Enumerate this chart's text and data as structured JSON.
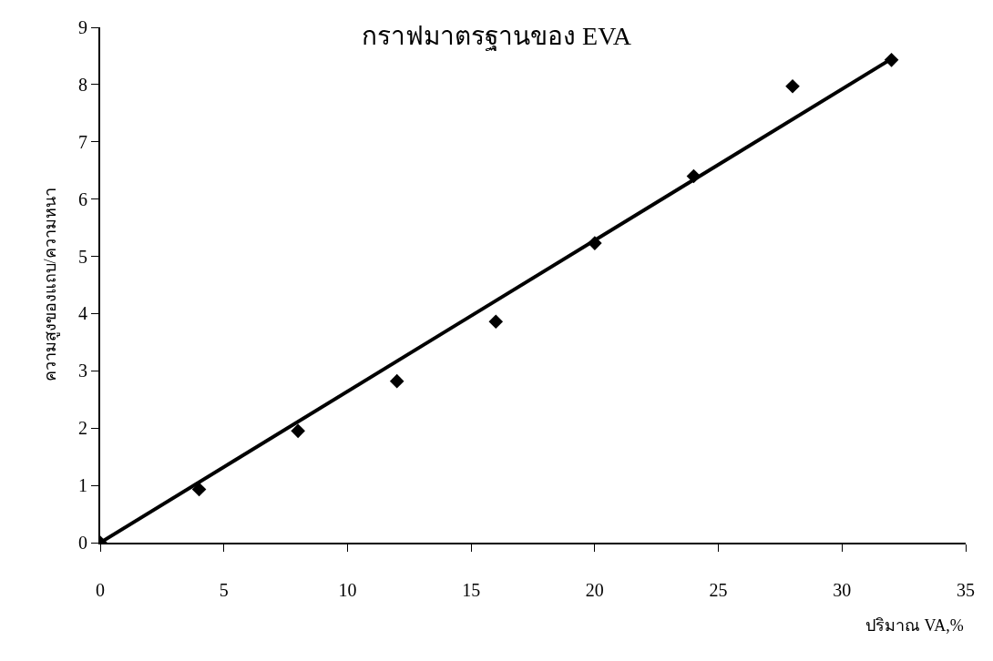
{
  "chart_data": {
    "type": "scatter",
    "title": "กราฟมาตรฐานของ EVA",
    "xlabel": "ปริมาณ VA,%",
    "ylabel": "ความสูงของแถบ/ความหนา",
    "xlim": [
      0,
      35
    ],
    "ylim": [
      0,
      9
    ],
    "xticks": [
      0,
      5,
      10,
      15,
      20,
      25,
      30,
      35
    ],
    "yticks": [
      0,
      1,
      2,
      3,
      4,
      5,
      6,
      7,
      8,
      9
    ],
    "grid": false,
    "series": [
      {
        "marker": "diamond",
        "color": "#000000",
        "x": [
          0,
          4,
          8,
          12,
          16,
          20,
          24,
          28,
          32
        ],
        "values": [
          0,
          0.93,
          1.95,
          2.82,
          3.86,
          5.23,
          6.4,
          7.97,
          8.43
        ]
      },
      {
        "type": "line",
        "color": "#000000",
        "x": [
          0,
          32
        ],
        "values": [
          0,
          8.45
        ],
        "line_style": "solid"
      }
    ]
  }
}
